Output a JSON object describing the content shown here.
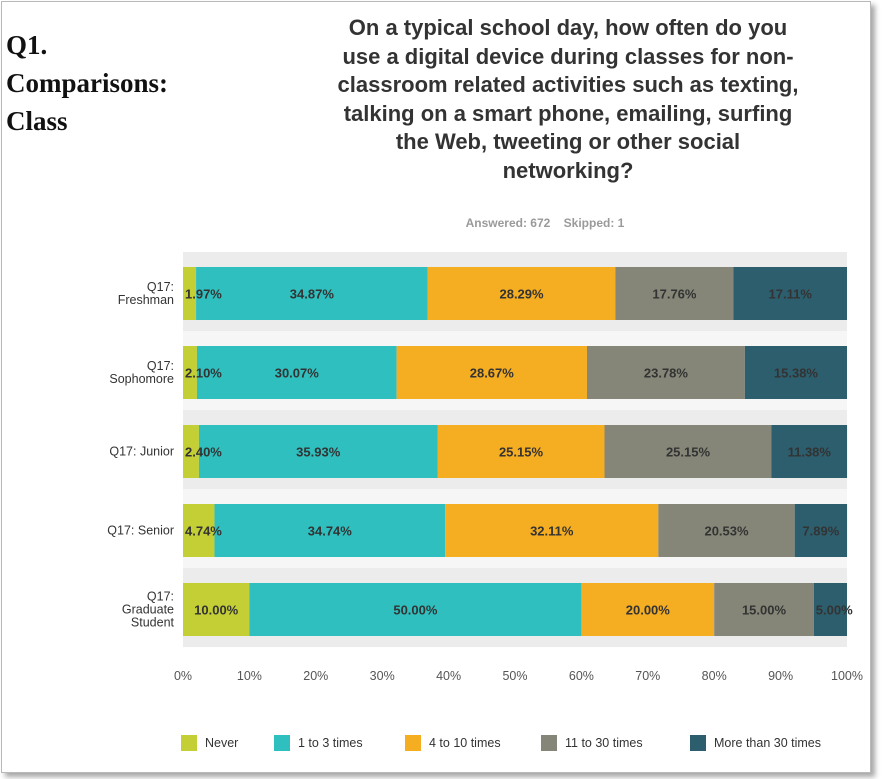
{
  "slide": {
    "heading_lines": [
      "Q1.",
      "Comparisons:",
      "Class"
    ],
    "question_lines": [
      "On a typical school day, how often do you",
      "use a digital device during classes for non-",
      "classroom related activities such as texting,",
      "talking on a smart phone, emailing, surfing",
      "the Web, tweeting or other social",
      "networking?"
    ],
    "answered": "Answered: 672",
    "skipped": "Skipped: 1"
  },
  "chart_data": {
    "type": "bar",
    "orientation": "horizontal",
    "stacked": true,
    "title": "On a typical school day, how often do you use a digital device during classes for non-classroom related activities such as texting, talking on a smart phone, emailing, surfing the Web, tweeting or other social networking?",
    "categories": [
      [
        "Q17:",
        "Freshman"
      ],
      [
        "Q17:",
        "Sophomore"
      ],
      [
        "Q17: Junior"
      ],
      [
        "Q17: Senior"
      ],
      [
        "Q17:",
        "Graduate",
        "Student"
      ]
    ],
    "series": [
      {
        "name": "Never",
        "color": "#c4cf35",
        "values": [
          1.97,
          2.1,
          2.4,
          4.74,
          10.0
        ],
        "labels": [
          "1.97%",
          "2.10%",
          "2.40%",
          "4.74%",
          "10.00%"
        ]
      },
      {
        "name": "1 to 3 times",
        "color": "#2fbfbf",
        "values": [
          34.87,
          30.07,
          35.93,
          34.74,
          50.0
        ],
        "labels": [
          "34.87%",
          "30.07%",
          "35.93%",
          "34.74%",
          "50.00%"
        ]
      },
      {
        "name": "4 to 10 times",
        "color": "#f5ad22",
        "values": [
          28.29,
          28.67,
          25.15,
          32.11,
          20.0
        ],
        "labels": [
          "28.29%",
          "28.67%",
          "25.15%",
          "32.11%",
          "20.00%"
        ]
      },
      {
        "name": "11 to 30 times",
        "color": "#858677",
        "values": [
          17.76,
          23.78,
          25.15,
          20.53,
          15.0
        ],
        "labels": [
          "17.76%",
          "23.78%",
          "25.15%",
          "20.53%",
          "15.00%"
        ]
      },
      {
        "name": "More than 30 times",
        "color": "#2d5e6e",
        "values": [
          17.11,
          15.38,
          11.38,
          7.89,
          5.0
        ],
        "labels": [
          "17.11%",
          "15.38%",
          "11.38%",
          "7.89%",
          "5.00%"
        ]
      }
    ],
    "xlim": [
      0,
      100
    ],
    "xticks": [
      "0%",
      "10%",
      "20%",
      "30%",
      "40%",
      "50%",
      "60%",
      "70%",
      "80%",
      "90%",
      "100%"
    ],
    "xlabel": "",
    "ylabel": "",
    "legend_position": "bottom"
  }
}
